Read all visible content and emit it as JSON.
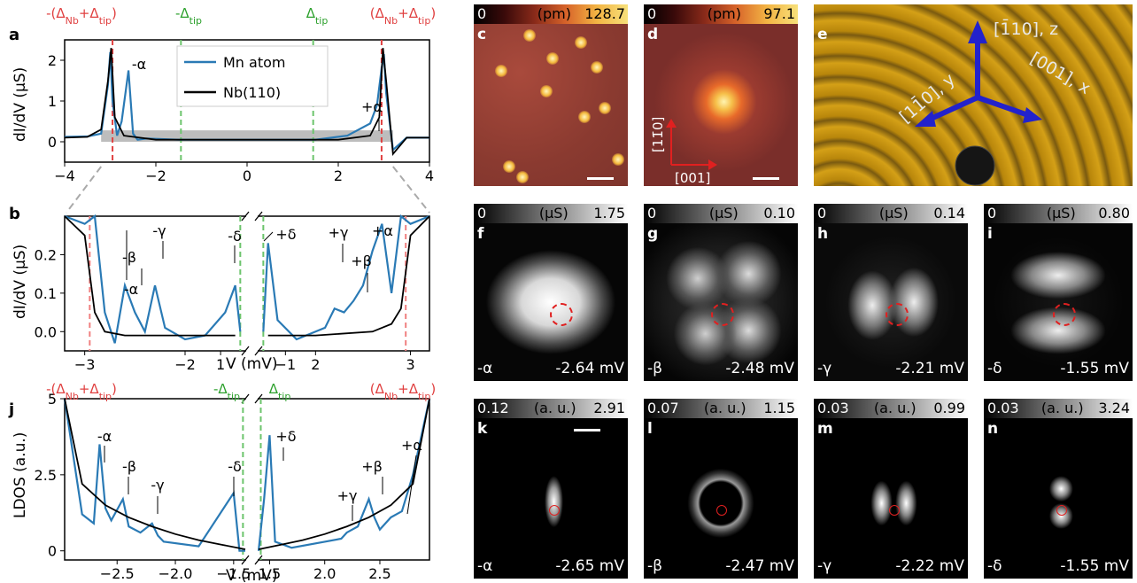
{
  "panel_a": {
    "label": "a",
    "ylabel": "dI/dV (µS)",
    "xticks": [
      "−4",
      "−2",
      "0",
      "2",
      "4"
    ],
    "yticks": [
      "0",
      "1",
      "2"
    ],
    "top_labels": {
      "neg_nb_tip": "-(Δ",
      "neg_tip": "-Δ",
      "pos_tip": "Δ",
      "pos_nb_tip": "(Δ"
    },
    "legend": [
      "Mn atom",
      "Nb(110)"
    ],
    "annotations": {
      "minus_alpha": "-α",
      "plus_alpha": "+α"
    },
    "colors": {
      "mn": "#2a7ab5",
      "nb": "#000000",
      "red": "#e04040",
      "green": "#2ca02c"
    }
  },
  "panel_b": {
    "label": "b",
    "ylabel": "dI/dV (µS)",
    "xlabel": "V (mV)",
    "xticks": [
      "−3",
      "−2",
      "−1",
      "1",
      "2",
      "3"
    ],
    "yticks": [
      "0.0",
      "0.1",
      "0.2"
    ],
    "annotations": [
      "-α",
      "-β",
      "-γ",
      "-δ",
      "+δ",
      "+γ",
      "+β",
      "+α"
    ]
  },
  "panel_j": {
    "label": "j",
    "ylabel": "LDOS (a.u.)",
    "xlabel": "V (mV)",
    "xticks": [
      "−2.5",
      "−2.0",
      "−1.5",
      "1.5",
      "2.0",
      "2.5"
    ],
    "yticks": [
      "0",
      "2.5",
      "5"
    ],
    "top_labels": {
      "neg_nb_tip": "-(Δ",
      "neg_tip": "-Δ",
      "pos_tip": "Δ",
      "pos_nb_tip": "(Δ"
    },
    "annotations": [
      "-α",
      "-β",
      "-γ",
      "-δ",
      "+δ",
      "+γ",
      "+β",
      "+α"
    ]
  },
  "top_label_subs": {
    "nb": "Nb",
    "tip": "tip",
    "plus": "+",
    "close": ")"
  },
  "maps": {
    "c": {
      "label": "c",
      "unit": "(pm)",
      "min": "0",
      "max": "128.7"
    },
    "d": {
      "label": "d",
      "unit": "(pm)",
      "min": "0",
      "max": "97.1",
      "axis_y": "[11̄0]",
      "axis_x": "[001]"
    },
    "e": {
      "label": "e",
      "axis_z": "[1̄10], z",
      "axis_y": "[11̄0], y",
      "axis_x": "[001], x"
    },
    "f": {
      "label": "f",
      "unit": "(µS)",
      "min": "0",
      "max": "1.75",
      "peak": "-α",
      "energy": "-2.64 mV"
    },
    "g": {
      "label": "g",
      "unit": "(µS)",
      "min": "0",
      "max": "0.10",
      "peak": "-β",
      "energy": "-2.48 mV"
    },
    "h": {
      "label": "h",
      "unit": "(µS)",
      "min": "0",
      "max": "0.14",
      "peak": "-γ",
      "energy": "-2.21 mV"
    },
    "i": {
      "label": "i",
      "unit": "(µS)",
      "min": "0",
      "max": "0.80",
      "peak": "-δ",
      "energy": "-1.55 mV"
    },
    "k": {
      "label": "k",
      "unit": "(a. u.)",
      "min": "0.12",
      "max": "2.91",
      "peak": "-α",
      "energy": "-2.65 mV"
    },
    "l": {
      "label": "l",
      "unit": "(a. u.)",
      "min": "0.07",
      "max": "1.15",
      "peak": "-β",
      "energy": "-2.47 mV"
    },
    "m": {
      "label": "m",
      "unit": "(a. u.)",
      "min": "0.03",
      "max": "0.99",
      "peak": "-γ",
      "energy": "-2.22 mV"
    },
    "n": {
      "label": "n",
      "unit": "(a. u.)",
      "min": "0.03",
      "max": "3.24",
      "peak": "-δ",
      "energy": "-1.55 mV"
    }
  },
  "chart_data": [
    {
      "type": "line",
      "panel": "a",
      "xlabel": "",
      "ylabel": "dI/dV (µS)",
      "xlim": [
        -4,
        4
      ],
      "ylim": [
        -0.5,
        2.5
      ],
      "series": [
        {
          "name": "Mn atom",
          "x": [
            -4,
            -3.5,
            -3.2,
            -3.05,
            -3.0,
            -2.95,
            -2.85,
            -2.75,
            -2.6,
            -2.5,
            -2.4,
            -2.2,
            -1.5,
            -1.0,
            0,
            1.0,
            1.5,
            2.2,
            2.7,
            2.85,
            2.95,
            3.0,
            3.05,
            3.2,
            3.5,
            4
          ],
          "y": [
            0.12,
            0.13,
            0.2,
            1.4,
            2.2,
            1.0,
            0.15,
            0.5,
            1.75,
            0.2,
            0.05,
            0.08,
            0.05,
            0.05,
            0.05,
            0.05,
            0.05,
            0.15,
            0.45,
            0.9,
            1.8,
            2.15,
            1.2,
            -0.2,
            0.1,
            0.1
          ]
        },
        {
          "name": "Nb(110)",
          "x": [
            -4,
            -3.5,
            -3.2,
            -3.05,
            -2.98,
            -2.9,
            -2.7,
            -2.0,
            0,
            2.0,
            2.7,
            2.9,
            2.98,
            3.05,
            3.2,
            3.5,
            4
          ],
          "y": [
            0.1,
            0.12,
            0.3,
            1.5,
            2.3,
            0.6,
            0.15,
            0.05,
            0.05,
            0.05,
            0.15,
            0.6,
            2.3,
            1.5,
            -0.3,
            0.1,
            0.1
          ]
        }
      ],
      "vlines_red": [
        -2.95,
        2.95
      ],
      "vlines_green": [
        -1.45,
        1.45
      ],
      "shaded": {
        "x": [
          -3.2,
          3.2
        ],
        "y": [
          0,
          0.28
        ]
      }
    },
    {
      "type": "line",
      "panel": "b",
      "xlabel": "V (mV)",
      "ylabel": "dI/dV (µS)",
      "ylim": [
        -0.05,
        0.3
      ],
      "series": [
        {
          "name": "Mn atom",
          "x": [
            -3.2,
            -3.0,
            -2.9,
            -2.8,
            -2.7,
            -2.6,
            -2.5,
            -2.4,
            -2.3,
            -2.2,
            -2.0,
            -1.8,
            -1.6,
            -1.5,
            -1.45,
            1.45,
            1.5,
            1.6,
            1.8,
            2.0,
            2.1,
            2.2,
            2.3,
            2.4,
            2.5,
            2.6,
            2.7,
            2.8,
            2.9,
            3.0,
            3.2
          ],
          "y": [
            0.3,
            0.28,
            0.3,
            0.05,
            -0.03,
            0.12,
            0.05,
            0.0,
            0.12,
            0.01,
            -0.02,
            -0.01,
            0.05,
            0.12,
            0.0,
            0.0,
            0.23,
            0.03,
            -0.02,
            0.0,
            0.01,
            0.06,
            0.05,
            0.08,
            0.12,
            0.21,
            0.28,
            0.1,
            0.3,
            0.28,
            0.3
          ]
        },
        {
          "name": "Nb(110)",
          "x": [
            -3.2,
            -3.0,
            -2.9,
            -2.8,
            -2.6,
            -2.0,
            -1.5,
            1.5,
            2.0,
            2.6,
            2.8,
            2.9,
            3.0,
            3.2
          ],
          "y": [
            0.3,
            0.25,
            0.05,
            0.0,
            -0.01,
            -0.01,
            -0.01,
            -0.01,
            -0.01,
            0.0,
            0.02,
            0.06,
            0.25,
            0.3
          ]
        }
      ],
      "vlines_red": [
        -2.95,
        2.95
      ],
      "vlines_green": [
        -1.45,
        1.45
      ]
    },
    {
      "type": "line",
      "panel": "j",
      "xlabel": "V (mV)",
      "ylabel": "LDOS (a.u.)",
      "ylim": [
        -0.3,
        5
      ],
      "series": [
        {
          "name": "",
          "x": [
            -2.95,
            -2.8,
            -2.7,
            -2.65,
            -2.6,
            -2.55,
            -2.45,
            -2.4,
            -2.3,
            -2.2,
            -2.15,
            -2.1,
            -1.8,
            -1.5,
            -1.45,
            -1.4,
            1.4,
            1.45,
            1.5,
            1.55,
            1.7,
            2.0,
            2.15,
            2.2,
            2.3,
            2.4,
            2.45,
            2.5,
            2.6,
            2.7,
            2.8,
            2.95
          ],
          "y": [
            5,
            1.2,
            0.9,
            3.5,
            1.4,
            1.0,
            1.7,
            0.8,
            0.6,
            0.9,
            0.5,
            0.3,
            0.15,
            1.9,
            0.0,
            0.0,
            0.0,
            1.7,
            3.8,
            0.3,
            0.1,
            0.3,
            0.4,
            0.6,
            0.8,
            1.7,
            1.1,
            0.7,
            1.1,
            1.3,
            2.5,
            5
          ]
        },
        {
          "name": "",
          "x": [
            -2.95,
            -2.8,
            -2.6,
            -2.4,
            -2.2,
            -2.0,
            -1.8,
            -1.6,
            -1.4,
            1.4,
            1.6,
            1.8,
            2.0,
            2.2,
            2.4,
            2.6,
            2.8,
            2.95
          ],
          "y": [
            5,
            2.2,
            1.5,
            1.1,
            0.8,
            0.55,
            0.35,
            0.2,
            0.05,
            0.05,
            0.2,
            0.35,
            0.55,
            0.8,
            1.1,
            1.5,
            2.2,
            5
          ]
        }
      ],
      "vlines_green": [
        -1.42,
        1.42
      ]
    }
  ]
}
